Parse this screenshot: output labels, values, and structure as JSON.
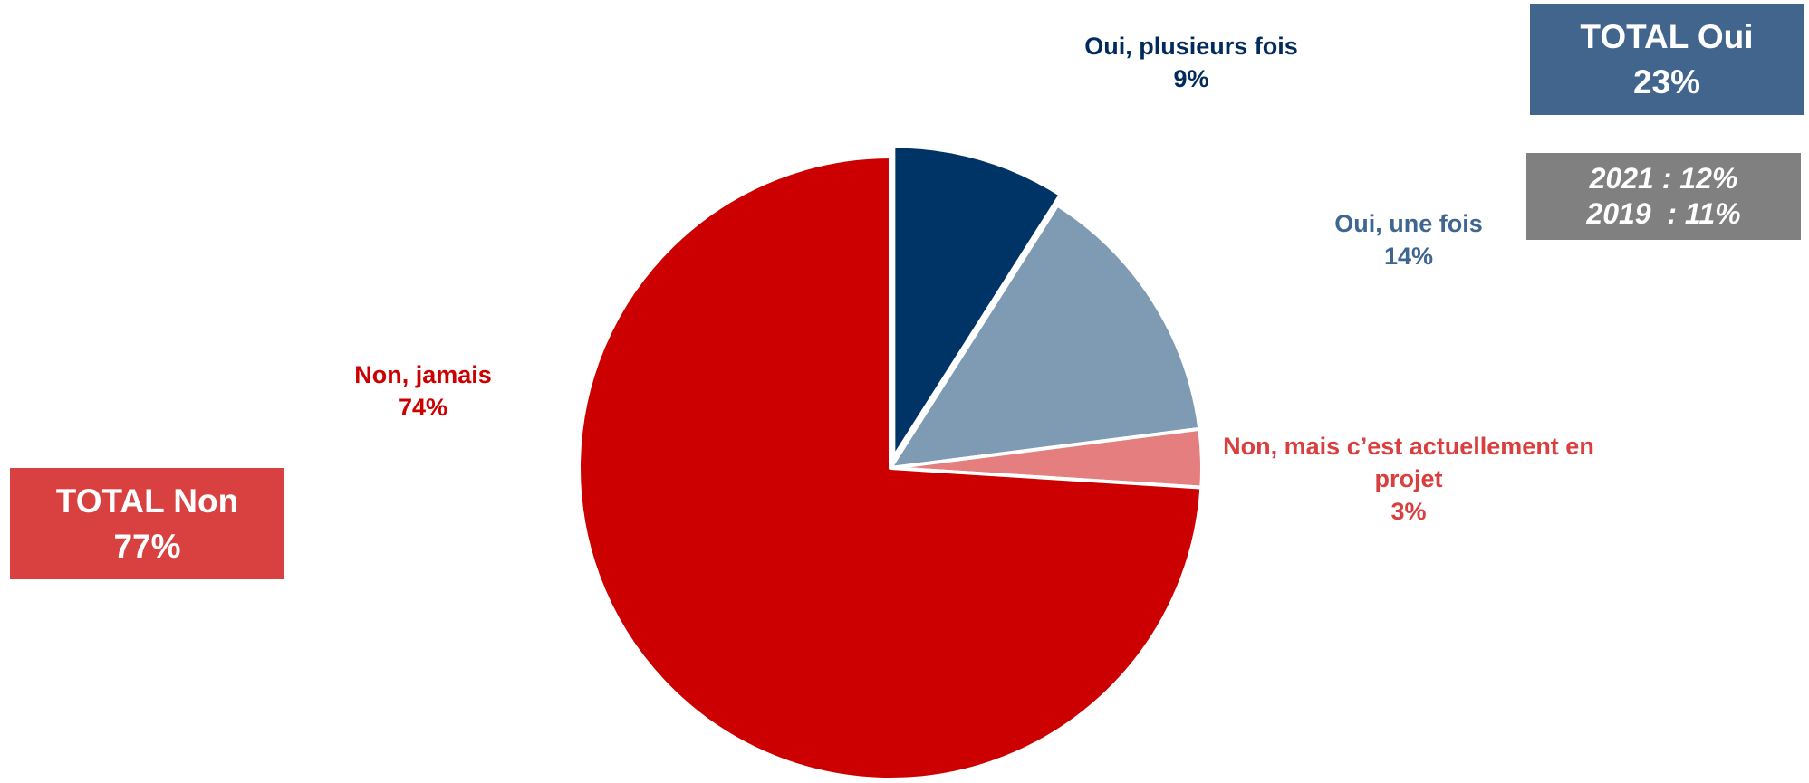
{
  "chart_data": {
    "type": "pie",
    "start_angle_deg": 0,
    "direction": "clockwise",
    "slices": [
      {
        "label": "Oui, plusieurs fois",
        "value": 9,
        "display": "9%",
        "color": "#003366",
        "label_color": "#002B5C",
        "exploded": true
      },
      {
        "label": "Oui, une fois",
        "value": 14,
        "display": "14%",
        "color": "#7F9AB3",
        "label_color": "#3F6690",
        "exploded": false
      },
      {
        "label": "Non, mais c’est actuellement en projet",
        "value": 3,
        "display": "3%",
        "color": "#E57F7F",
        "label_color": "#D93F3F",
        "exploded": false
      },
      {
        "label": "Non, jamais",
        "value": 74,
        "display": "74%",
        "color": "#CC0000",
        "label_color": "#CC0000",
        "exploded": false
      }
    ]
  },
  "totals": {
    "oui": {
      "title": "TOTAL Oui",
      "value": "23%",
      "color": "#41658D"
    },
    "non": {
      "title": "TOTAL Non",
      "value": "77%",
      "color": "#D94040"
    }
  },
  "history": {
    "line1": "2021 : 12%",
    "line2": "2019  : 11%",
    "color": "#808080"
  }
}
